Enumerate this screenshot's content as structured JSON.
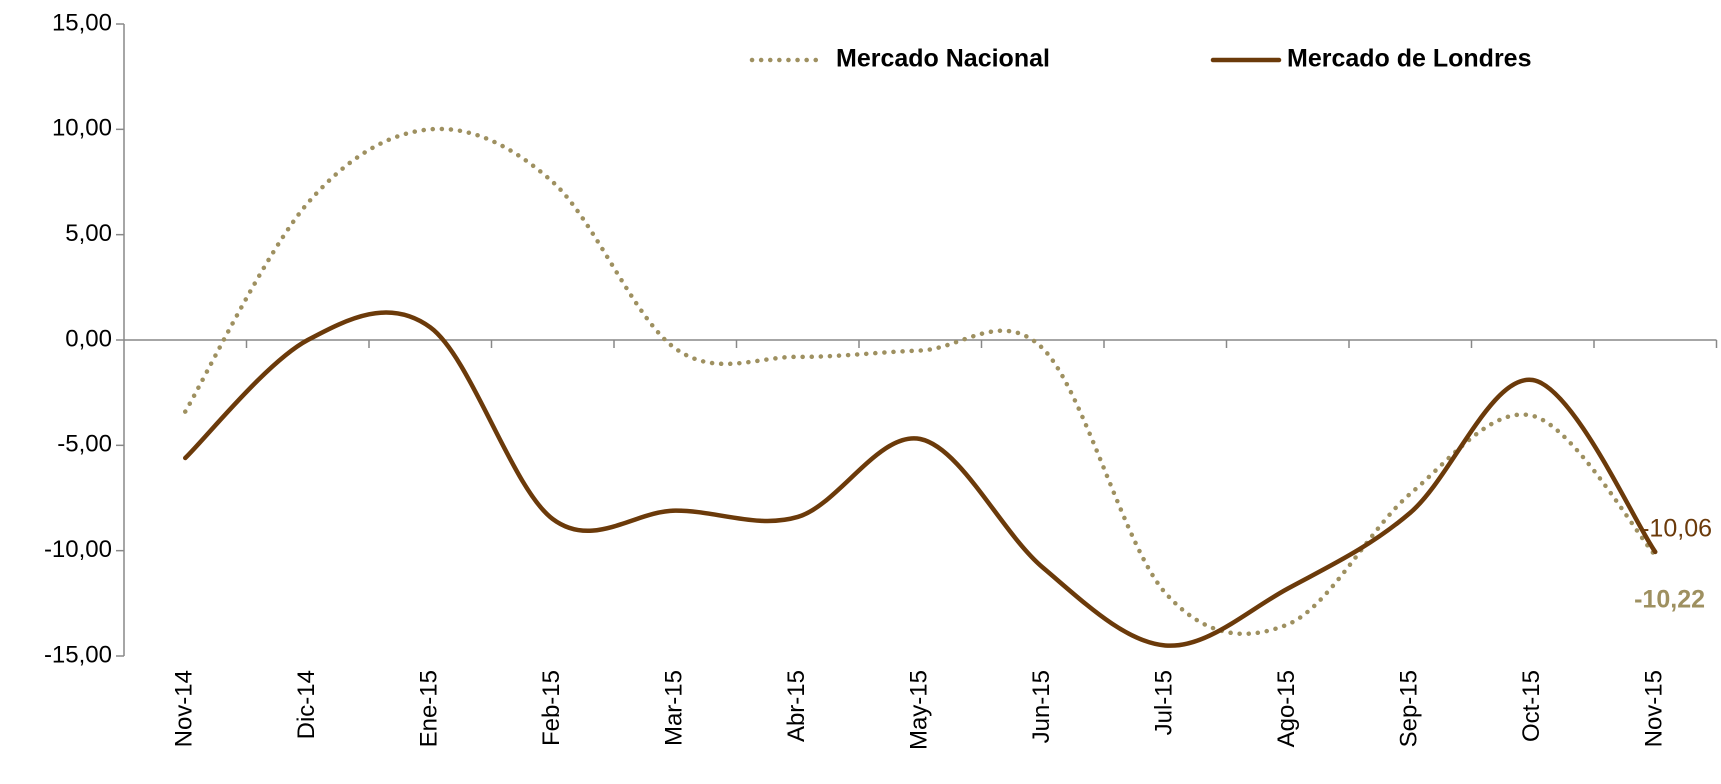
{
  "chart_data": {
    "type": "line",
    "categories": [
      "Nov-14",
      "Dic-14",
      "Ene-15",
      "Feb-15",
      "Mar-15",
      "Abr-15",
      "May-15",
      "Jun-15",
      "Jul-15",
      "Ago-15",
      "Sep-15",
      "Oct-15",
      "Nov-15"
    ],
    "series": [
      {
        "name": "Mercado Nacional",
        "color": "#9e9060",
        "style": "dotted",
        "values": [
          -3.4,
          6.5,
          10.0,
          7.5,
          -0.4,
          -0.8,
          -0.5,
          -0.4,
          -12.0,
          -13.5,
          -7.3,
          -3.6,
          -10.22
        ],
        "value_labels": [
          null,
          null,
          null,
          null,
          null,
          null,
          null,
          null,
          null,
          null,
          null,
          null,
          "-10,22"
        ]
      },
      {
        "name": "Mercado de Londres",
        "color": "#6b3a0a",
        "style": "solid",
        "values": [
          -5.6,
          0.0,
          0.6,
          -8.5,
          -8.1,
          -8.4,
          -4.7,
          -10.8,
          -14.5,
          -11.8,
          -8.2,
          -1.9,
          -10.06
        ],
        "value_labels": [
          null,
          null,
          null,
          null,
          null,
          null,
          null,
          null,
          null,
          null,
          null,
          null,
          "-10,06"
        ]
      }
    ],
    "ylim": [
      -15,
      15
    ],
    "yticks": [
      {
        "value": -15,
        "label": "-15,00"
      },
      {
        "value": -10,
        "label": "-10,00"
      },
      {
        "value": -5,
        "label": "-5,00"
      },
      {
        "value": 0,
        "label": "0,00"
      },
      {
        "value": 5,
        "label": "5,00"
      },
      {
        "value": 10,
        "label": "10,00"
      },
      {
        "value": 15,
        "label": "15,00"
      }
    ],
    "legend": "top"
  }
}
